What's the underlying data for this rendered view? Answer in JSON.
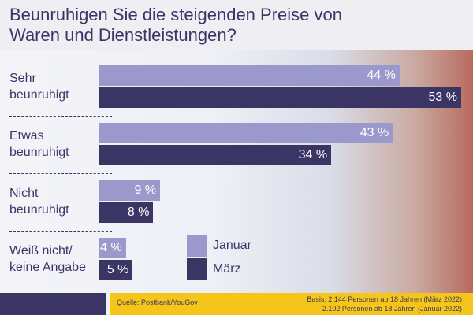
{
  "chart_data": {
    "type": "bar",
    "orientation": "horizontal",
    "title": "Beunruhigen Sie die steigenden Preise von Waren und Dienstleistungen?",
    "categories": [
      "Sehr beunruhigt",
      "Etwas beunruhigt",
      "Nicht beunruhigt",
      "Weiß nicht/ keine Angabe"
    ],
    "series": [
      {
        "name": "Januar",
        "color": "#9b98cc",
        "values": [
          44,
          43,
          9,
          4
        ],
        "value_labels": [
          "44 %",
          "43 %",
          "9 %",
          "4 %"
        ]
      },
      {
        "name": "März",
        "color": "#3b3566",
        "values": [
          53,
          34,
          8,
          5
        ],
        "value_labels": [
          "53 %",
          "34 %",
          "8 %",
          "5 %"
        ]
      }
    ],
    "source": "Quelle: Postbank/YouGov",
    "notes": [
      "Basis: 2.144 Personen ab 18 Jahren (März 2022)",
      "2.102 Personen ab 18 Jahren (Januar 2022)"
    ]
  }
}
